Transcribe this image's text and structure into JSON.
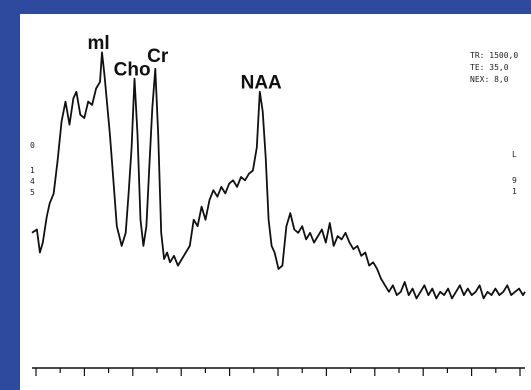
{
  "params": {
    "tr": "TR: 1500,0",
    "te": "TE: 35,0",
    "nex": "NEX: 8,0"
  },
  "side_left": [
    "0",
    "1",
    "4",
    "5"
  ],
  "side_right": [
    "L",
    "9",
    "1"
  ],
  "colors": {
    "background": "#2d4a9e",
    "panel": "#ffffff",
    "trace": "#111111"
  },
  "chart_data": {
    "type": "line",
    "title": "",
    "xlabel": "",
    "ylabel": "",
    "xlim": [
      0,
      100
    ],
    "ylim": [
      0,
      100
    ],
    "grid": false,
    "peak_labels": [
      {
        "text": "ml",
        "x": 13.5,
        "y": 96
      },
      {
        "text": "Cho",
        "x": 20.3,
        "y": 88
      },
      {
        "text": "Cr",
        "x": 25.5,
        "y": 92
      },
      {
        "text": "NAA",
        "x": 46.5,
        "y": 84
      }
    ],
    "series": [
      {
        "x": [
          0,
          1,
          1.6,
          2.2,
          3,
          3.6,
          4.4,
          5.2,
          6,
          6.8,
          7.6,
          8.4,
          9,
          9.8,
          10.6,
          11.4,
          12.2,
          13,
          13.8,
          14.2,
          14.7,
          15.2,
          15.8,
          16.4,
          17.2,
          18.2,
          19,
          19.6,
          20.2,
          20.8,
          21.4,
          22,
          22.6,
          23.2,
          23.8,
          24.4,
          25,
          25.6,
          26.2,
          26.8,
          27.4,
          28,
          28.8,
          29.6,
          30.4,
          31.2,
          32,
          32.8,
          33.6,
          34.4,
          35.2,
          36,
          36.8,
          37.6,
          38.4,
          39.2,
          40,
          40.8,
          41.6,
          42.4,
          43.2,
          44,
          44.8,
          45.6,
          46.2,
          46.8,
          47.4,
          48,
          48.6,
          49.2,
          50,
          50.8,
          51.6,
          52.4,
          53.2,
          54,
          54.8,
          55.6,
          56.4,
          57.2,
          58,
          58.8,
          59.6,
          60.4,
          61.2,
          62,
          62.8,
          63.6,
          64.4,
          65.2,
          66,
          66.8,
          67.6,
          68.4,
          69.2,
          70,
          70.8,
          71.6,
          72.4,
          73.2,
          74,
          74.8,
          75.6,
          76.4,
          77.2,
          78,
          78.8,
          79.6,
          80.4,
          81.2,
          82,
          82.8,
          83.6,
          84.4,
          85.2,
          86,
          86.8,
          87.6,
          88.4,
          89.2,
          90,
          90.8,
          91.6,
          92.4,
          93.2,
          94,
          94.8,
          95.6,
          96.4,
          97.2,
          98,
          98.8,
          99.6,
          100
        ],
        "y": [
          40,
          41,
          34,
          37,
          45,
          49,
          52,
          62,
          74,
          80,
          73,
          81,
          83,
          76,
          75,
          80,
          79,
          84,
          86,
          95,
          88,
          80,
          70,
          58,
          42,
          36,
          40,
          52,
          66,
          87,
          70,
          44,
          36,
          42,
          60,
          78,
          90,
          70,
          40,
          32,
          34,
          31,
          33,
          30,
          32,
          34,
          36,
          44,
          42,
          48,
          44,
          50,
          53,
          51,
          54,
          52,
          55,
          56,
          54,
          57,
          56,
          58,
          59,
          66,
          83,
          77,
          63,
          44,
          36,
          34,
          29,
          30,
          42,
          46,
          41,
          40,
          42,
          38,
          40,
          37,
          39,
          41,
          37,
          43,
          36,
          39,
          38,
          40,
          37,
          35,
          36,
          33,
          34,
          30,
          31,
          29,
          26,
          24,
          22,
          24,
          21,
          22,
          25,
          21,
          23,
          20,
          22,
          24,
          21,
          23,
          20,
          22,
          21,
          23,
          20,
          22,
          24,
          21,
          23,
          21,
          22,
          24,
          20,
          22,
          21,
          23,
          21,
          22,
          24,
          21,
          22,
          23,
          21,
          22
        ]
      }
    ]
  }
}
